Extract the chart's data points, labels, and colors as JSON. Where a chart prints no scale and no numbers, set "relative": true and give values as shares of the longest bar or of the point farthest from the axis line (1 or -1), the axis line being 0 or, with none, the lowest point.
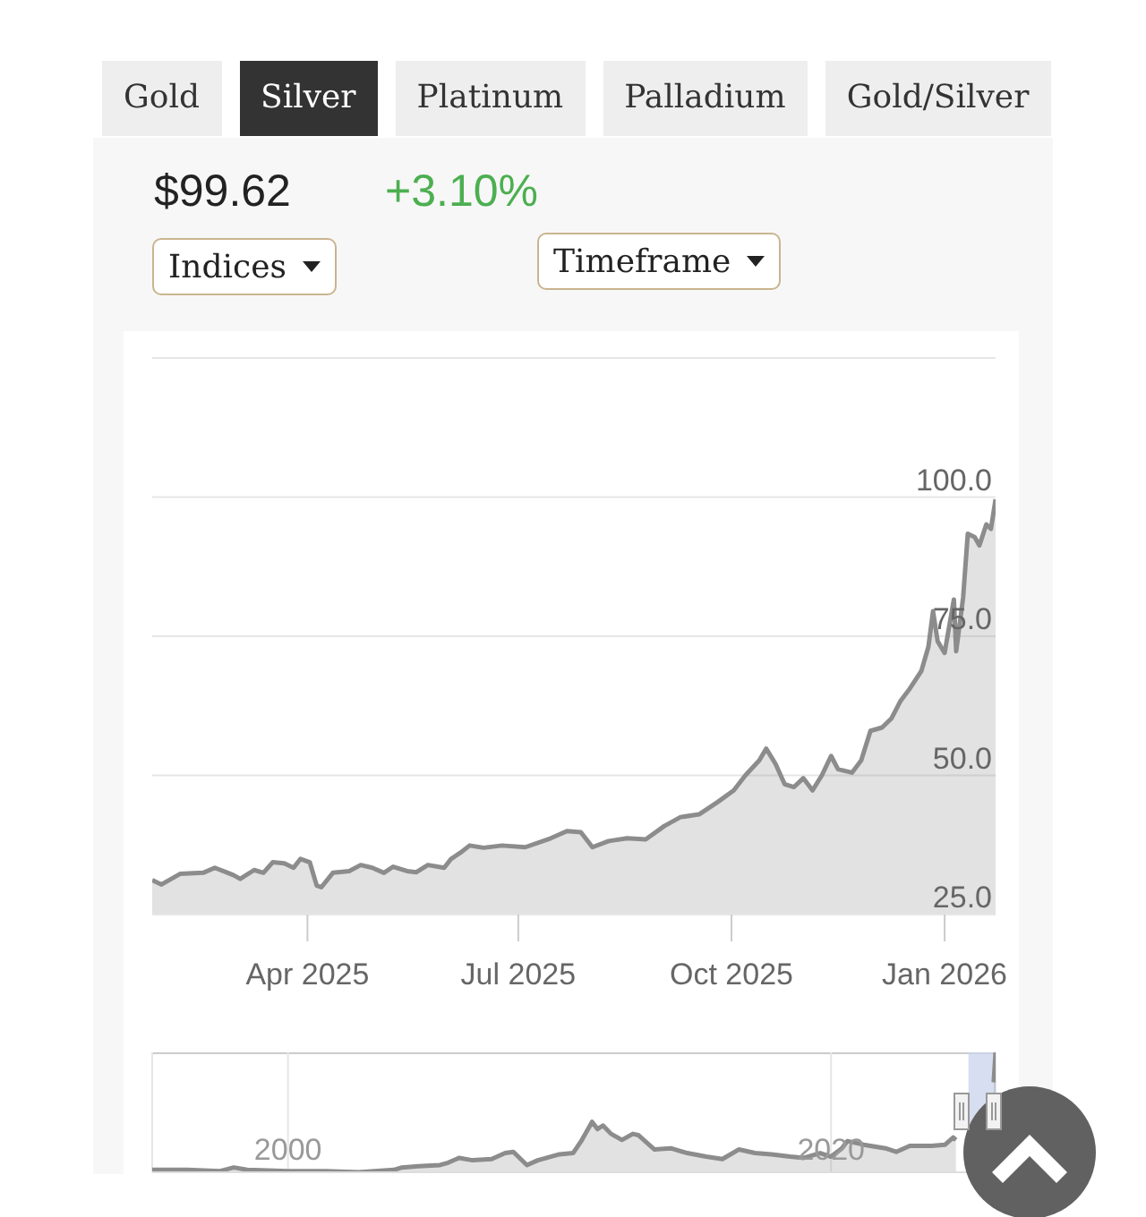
{
  "chart_data": [
    {
      "type": "area",
      "annotations": [
        "Gold",
        "Silver",
        "Platinum",
        "Palladium",
        "Gold/Silver",
        "$99.62",
        "+3.10%",
        "Indices",
        "Timeframe"
      ],
      "x": [
        "2025-01-24",
        "2025-01-28",
        "2025-02-05",
        "2025-02-15",
        "2025-02-20",
        "2025-02-28",
        "2025-03-03",
        "2025-03-09",
        "2025-03-13",
        "2025-03-17",
        "2025-03-22",
        "2025-03-26",
        "2025-03-29",
        "2025-04-02",
        "2025-04-05",
        "2025-04-07",
        "2025-04-12",
        "2025-04-19",
        "2025-04-24",
        "2025-04-29",
        "2025-05-04",
        "2025-05-08",
        "2025-05-14",
        "2025-05-18",
        "2025-05-23",
        "2025-05-30",
        "2025-06-02",
        "2025-06-06",
        "2025-06-10",
        "2025-06-16",
        "2025-06-24",
        "2025-07-04",
        "2025-07-15",
        "2025-07-22",
        "2025-07-28",
        "2025-08-02",
        "2025-08-09",
        "2025-08-17",
        "2025-08-25",
        "2025-09-02",
        "2025-09-09",
        "2025-09-17",
        "2025-09-25",
        "2025-10-02",
        "2025-10-07",
        "2025-10-13",
        "2025-10-16",
        "2025-10-20",
        "2025-10-24",
        "2025-10-28",
        "2025-11-01",
        "2025-11-05",
        "2025-11-09",
        "2025-11-13",
        "2025-11-16",
        "2025-11-22",
        "2025-11-26",
        "2025-11-30",
        "2025-12-05",
        "2025-12-09",
        "2025-12-13",
        "2025-12-17",
        "2025-12-22",
        "2025-12-25",
        "2025-12-27",
        "2025-12-29",
        "2026-01-01",
        "2026-01-05",
        "2026-01-06",
        "2026-01-09",
        "2026-01-11",
        "2026-01-14",
        "2026-01-16",
        "2026-01-19",
        "2026-01-21",
        "2026-01-23"
      ],
      "values": [
        31.2,
        30.4,
        32.3,
        32.5,
        33.4,
        32.1,
        31.4,
        33.0,
        32.5,
        34.4,
        34.2,
        33.4,
        35.0,
        34.4,
        30.2,
        29.9,
        32.5,
        32.8,
        33.9,
        33.4,
        32.5,
        33.6,
        32.8,
        32.6,
        33.9,
        33.4,
        35.0,
        36.1,
        37.4,
        37.0,
        37.4,
        37.1,
        38.7,
        40.0,
        39.8,
        37.1,
        38.2,
        38.7,
        38.5,
        40.9,
        42.5,
        43.0,
        45.2,
        47.3,
        50.0,
        52.7,
        54.8,
        52.1,
        48.4,
        47.9,
        49.5,
        47.3,
        50.0,
        53.5,
        51.1,
        50.5,
        52.7,
        58.0,
        58.6,
        60.2,
        63.4,
        65.6,
        68.8,
        73.1,
        79.5,
        74.1,
        72.0,
        81.6,
        72.3,
        82.0,
        93.4,
        92.8,
        91.3,
        95.1,
        94.3,
        99.6
      ],
      "color": "#8c8c8c",
      "xlim": [
        "2025-01-24",
        "2026-01-23"
      ],
      "xticks": [
        {
          "value": "2025-04-01",
          "label": "Apr 2025"
        },
        {
          "value": "2025-07-01",
          "label": "Jul 2025"
        },
        {
          "value": "2025-10-01",
          "label": "Oct 2025"
        },
        {
          "value": "2026-01-01",
          "label": "Jan 2026"
        }
      ],
      "ylim": [
        25,
        125
      ],
      "yticks": [
        {
          "value": 25,
          "label": "25.0"
        },
        {
          "value": 50,
          "label": "50.0"
        },
        {
          "value": 75,
          "label": "75.0"
        },
        {
          "value": 100,
          "label": "100.0"
        },
        {
          "value": 125,
          "label": null
        }
      ],
      "grid": "y"
    },
    {
      "type": "area",
      "relative": true,
      "x": [
        1995.0,
        1996.3,
        1997.5,
        1998.0,
        1998.5,
        2000.0,
        2001.4,
        2002.6,
        2003.9,
        2004.2,
        2004.8,
        2005.6,
        2005.9,
        2006.3,
        2006.8,
        2007.5,
        2008.0,
        2008.3,
        2008.8,
        2009.2,
        2010.0,
        2010.5,
        2010.8,
        2011.2,
        2011.4,
        2011.6,
        2011.9,
        2012.3,
        2012.7,
        2012.9,
        2013.5,
        2014.1,
        2014.7,
        2015.4,
        2016.0,
        2016.6,
        2017.2,
        2017.8,
        2018.5,
        2019.0,
        2019.6,
        2020.0,
        2020.4,
        2020.6,
        2021.2,
        2022.0,
        2022.4,
        2022.9,
        2023.7,
        2024.2,
        2024.5,
        2024.6,
        2025.5,
        2025.99,
        2026.06
      ],
      "values": [
        0.02,
        0.02,
        0.01,
        0.04,
        0.02,
        0.01,
        0.01,
        0,
        0.02,
        0.04,
        0.05,
        0.06,
        0.08,
        0.12,
        0.1,
        0.11,
        0.16,
        0.17,
        0.06,
        0.1,
        0.15,
        0.16,
        0.26,
        0.42,
        0.36,
        0.39,
        0.32,
        0.27,
        0.32,
        0.31,
        0.19,
        0.2,
        0.16,
        0.13,
        0.11,
        0.19,
        0.16,
        0.15,
        0.13,
        0.12,
        0.16,
        0.13,
        0.2,
        0.26,
        0.23,
        0.2,
        0.17,
        0.22,
        0.22,
        0.23,
        0.29,
        0.27,
        null,
        0.75,
        1
      ],
      "color": "#8c8c8c",
      "xlim": [
        1995,
        2026.06
      ],
      "xticks": [
        2000,
        2020
      ],
      "grid": "x",
      "tick_labels": "x",
      "bands": [
        {
          "axis": "x",
          "from": 2025.06,
          "to": 2026.06,
          "color": "#c9d3ec"
        }
      ]
    }
  ]
}
